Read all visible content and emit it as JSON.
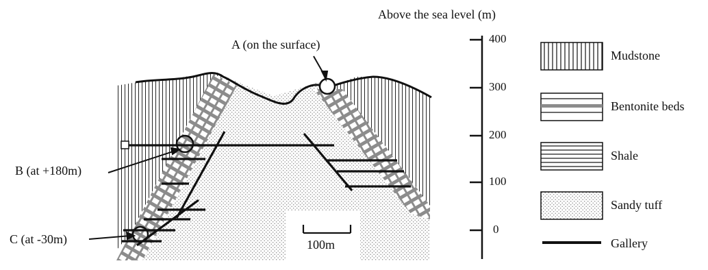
{
  "labels": {
    "point_a": "A (on the surface)",
    "point_b": "B (at +180m)",
    "point_c": "C (at -30m)",
    "scale_bar": "100m"
  },
  "elevation_axis": {
    "title": "Above the sea level (m)",
    "ticks": [
      "400",
      "300",
      "200",
      "100",
      "0"
    ]
  },
  "legend": {
    "items": [
      {
        "label": "Mudstone",
        "pattern": "vertical-lines"
      },
      {
        "label": "Bentonite beds",
        "pattern": "horizontal-gray-band"
      },
      {
        "label": "Shale",
        "pattern": "horizontal-lines"
      },
      {
        "label": "Sandy tuff",
        "pattern": "dots"
      },
      {
        "label": "Gallery",
        "pattern": "thick-line"
      }
    ]
  },
  "colors": {
    "ink": "#111111",
    "bentonite_gray": "#8c8c8c",
    "tuff_dot": "#9a9a9a"
  }
}
